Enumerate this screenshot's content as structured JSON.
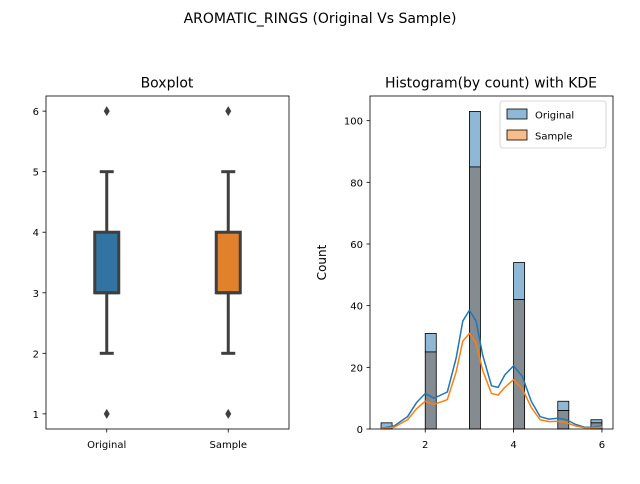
{
  "suptitle": "AROMATIC_RINGS (Original Vs Sample)",
  "colors": {
    "original": "#1f77b4",
    "sample": "#ff7f0e",
    "original_box": "#3274a1",
    "sample_box": "#e1812c",
    "box_edge": "#3f3f3f",
    "overlap": "#848b91"
  },
  "chart_data": [
    {
      "type": "boxplot",
      "title": "Boxplot",
      "xlabel": "",
      "ylabel": "",
      "categories": [
        "Original",
        "Sample"
      ],
      "ylim": [
        0.75,
        6.25
      ],
      "yticks": [
        1,
        2,
        3,
        4,
        5,
        6
      ],
      "series": [
        {
          "name": "Original",
          "q1": 3,
          "median": 3,
          "q3": 4,
          "whisker_low": 2,
          "whisker_high": 5,
          "outliers": [
            1,
            6
          ]
        },
        {
          "name": "Sample",
          "q1": 3,
          "median": 3,
          "q3": 4,
          "whisker_low": 2,
          "whisker_high": 5,
          "outliers": [
            1,
            6
          ]
        }
      ]
    },
    {
      "type": "histogram",
      "title": "Histogram(by count) with KDE",
      "xlabel": "",
      "ylabel": "Count",
      "xlim": [
        0.75,
        6.25
      ],
      "ylim": [
        0,
        108
      ],
      "xticks": [
        2,
        4,
        6
      ],
      "yticks": [
        0,
        20,
        40,
        60,
        80,
        100
      ],
      "legend": "top-right",
      "bins": [
        {
          "x0": 1.0,
          "x1": 1.25
        },
        {
          "x0": 1.25,
          "x1": 1.5
        },
        {
          "x0": 1.5,
          "x1": 1.75
        },
        {
          "x0": 1.75,
          "x1": 2.0
        },
        {
          "x0": 2.0,
          "x1": 2.25
        },
        {
          "x0": 2.25,
          "x1": 2.5
        },
        {
          "x0": 2.5,
          "x1": 2.75
        },
        {
          "x0": 2.75,
          "x1": 3.0
        },
        {
          "x0": 3.0,
          "x1": 3.25
        },
        {
          "x0": 3.25,
          "x1": 3.5
        },
        {
          "x0": 3.5,
          "x1": 3.75
        },
        {
          "x0": 3.75,
          "x1": 4.0
        },
        {
          "x0": 4.0,
          "x1": 4.25
        },
        {
          "x0": 4.25,
          "x1": 4.5
        },
        {
          "x0": 4.5,
          "x1": 4.75
        },
        {
          "x0": 4.75,
          "x1": 5.0
        },
        {
          "x0": 5.0,
          "x1": 5.25
        },
        {
          "x0": 5.25,
          "x1": 5.5
        },
        {
          "x0": 5.5,
          "x1": 5.75
        },
        {
          "x0": 5.75,
          "x1": 6.0
        }
      ],
      "series": [
        {
          "name": "Original",
          "counts": [
            2,
            0,
            0,
            0,
            31,
            0,
            0,
            0,
            103,
            0,
            0,
            0,
            54,
            0,
            0,
            0,
            9,
            0,
            0,
            3
          ],
          "kde": {
            "x": [
              1.0,
              1.3,
              1.6,
              1.8,
              2.0,
              2.2,
              2.5,
              2.7,
              2.85,
              3.0,
              3.15,
              3.3,
              3.5,
              3.65,
              3.8,
              4.0,
              4.2,
              4.4,
              4.6,
              4.8,
              5.0,
              5.2,
              5.4,
              5.6,
              5.8,
              6.0
            ],
            "y": [
              0.2,
              1.0,
              4.0,
              8.5,
              11.5,
              10.0,
              12.0,
              23.0,
              35.0,
              38.5,
              35.0,
              24.0,
              14.0,
              13.5,
              17.5,
              20.5,
              17.0,
              9.0,
              4.0,
              3.2,
              3.5,
              3.0,
              1.5,
              0.6,
              0.5,
              1.0
            ]
          }
        },
        {
          "name": "Sample",
          "counts": [
            0,
            0,
            0,
            0,
            25,
            0,
            0,
            0,
            85,
            0,
            0,
            0,
            42,
            0,
            0,
            0,
            6,
            0,
            0,
            2
          ],
          "kde": {
            "x": [
              1.0,
              1.3,
              1.6,
              1.8,
              2.0,
              2.2,
              2.5,
              2.7,
              2.85,
              3.0,
              3.15,
              3.3,
              3.5,
              3.65,
              3.8,
              4.0,
              4.2,
              4.4,
              4.6,
              4.8,
              5.0,
              5.2,
              5.4,
              5.6,
              5.8,
              6.0
            ],
            "y": [
              0.1,
              0.6,
              3.0,
              6.5,
              9.0,
              8.0,
              9.5,
              18.5,
              28.5,
              31.0,
              28.0,
              19.0,
              11.5,
              11.0,
              13.5,
              16.0,
              13.0,
              7.0,
              3.0,
              2.4,
              2.5,
              2.0,
              1.0,
              0.4,
              0.3,
              0.6
            ]
          }
        }
      ]
    }
  ]
}
